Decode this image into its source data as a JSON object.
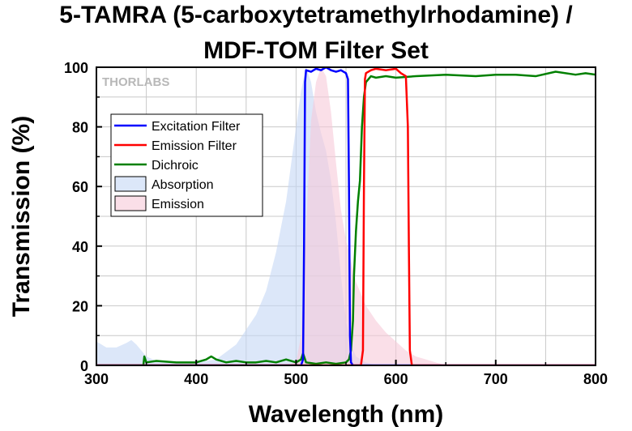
{
  "chart_data": {
    "type": "line",
    "title_lines": [
      "5-TAMRA (5-carboxytetramethylrhodamine) /",
      "MDF-TOM Filter Set"
    ],
    "xlabel": "Wavelength (nm)",
    "ylabel": "Transmission (%)",
    "xlim": [
      300,
      800
    ],
    "ylim": [
      0,
      100
    ],
    "xticks": [
      300,
      400,
      500,
      600,
      700,
      800
    ],
    "yticks": [
      0,
      20,
      40,
      60,
      80,
      100
    ],
    "grid": true,
    "watermark": "THORLABS",
    "legend_position": "upper-left",
    "series": [
      {
        "name": "Excitation Filter",
        "kind": "line",
        "color": "#0000ff",
        "x": [
          300,
          505,
          507,
          508,
          509,
          510,
          515,
          520,
          525,
          530,
          535,
          540,
          545,
          550,
          552,
          553,
          554,
          555,
          557,
          800
        ],
        "y": [
          0,
          0,
          2,
          40,
          95,
          99,
          98.5,
          99.5,
          99,
          100,
          99,
          98.5,
          99,
          98,
          96,
          60,
          10,
          1,
          0,
          0
        ]
      },
      {
        "name": "Emission Filter",
        "kind": "line",
        "color": "#ff0000",
        "x": [
          300,
          565,
          567,
          568,
          569,
          570,
          575,
          580,
          590,
          600,
          605,
          610,
          612,
          613,
          614,
          616,
          800
        ],
        "y": [
          0,
          0,
          5,
          60,
          96,
          98,
          99,
          99.5,
          99,
          99.5,
          98,
          97,
          80,
          40,
          5,
          0,
          0
        ]
      },
      {
        "name": "Dichroic",
        "kind": "line",
        "color": "#008000",
        "x": [
          300,
          347,
          348,
          350,
          360,
          380,
          400,
          410,
          415,
          420,
          430,
          440,
          450,
          460,
          470,
          480,
          490,
          500,
          505,
          507,
          510,
          520,
          530,
          540,
          550,
          553,
          555,
          557,
          558,
          560,
          562,
          564,
          566,
          568,
          570,
          575,
          580,
          590,
          600,
          620,
          650,
          680,
          700,
          720,
          740,
          760,
          780,
          790,
          800
        ],
        "y": [
          0,
          0,
          3,
          1,
          1.5,
          1,
          1,
          2,
          3,
          2,
          1,
          1.5,
          1,
          1,
          1.5,
          1,
          2,
          1,
          2,
          4,
          1,
          0.5,
          1,
          0.5,
          1,
          2,
          5,
          15,
          30,
          45,
          55,
          62,
          80,
          90,
          95,
          97,
          96.5,
          97,
          96.5,
          97,
          97.5,
          97,
          97.5,
          97.5,
          97,
          98.5,
          97.5,
          98,
          97.5
        ]
      },
      {
        "name": "Absorption",
        "kind": "area",
        "color": "#c5d7f5",
        "x": [
          300,
          310,
          320,
          330,
          335,
          340,
          350,
          360,
          380,
          400,
          420,
          440,
          460,
          470,
          480,
          490,
          500,
          505,
          510,
          515,
          520,
          525,
          530,
          535,
          540,
          545,
          550,
          555,
          560,
          570,
          580
        ],
        "y": [
          8,
          6,
          6,
          7.5,
          8.5,
          7,
          3,
          1.5,
          1,
          1,
          2,
          7,
          17,
          25,
          38,
          55,
          80,
          92,
          100,
          95,
          85,
          78,
          72,
          62,
          48,
          30,
          15,
          7,
          3,
          1,
          0
        ]
      },
      {
        "name": "Emission",
        "kind": "area",
        "color": "#f7cad9",
        "x": [
          490,
          500,
          505,
          510,
          515,
          520,
          525,
          530,
          535,
          540,
          545,
          550,
          555,
          560,
          570,
          580,
          590,
          600,
          610,
          620,
          630,
          640,
          650
        ],
        "y": [
          0,
          1,
          10,
          45,
          82,
          95,
          100,
          97,
          85,
          68,
          52,
          42,
          35,
          28,
          20,
          15,
          11,
          8,
          5,
          3,
          2,
          1,
          0
        ]
      }
    ]
  }
}
